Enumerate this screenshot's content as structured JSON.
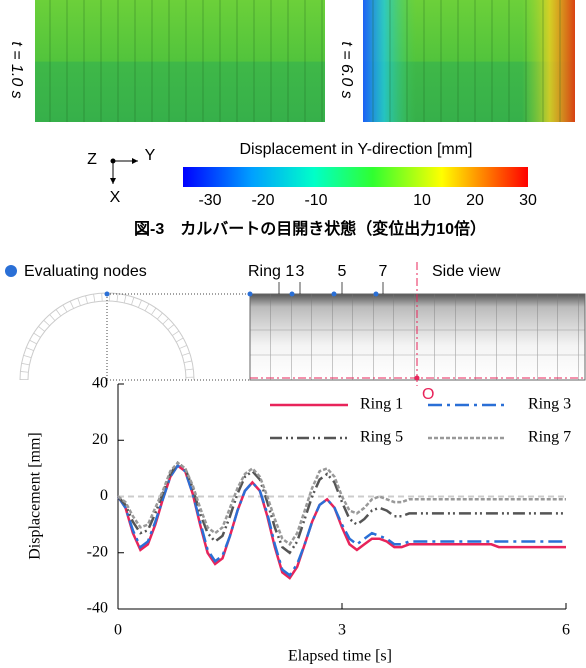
{
  "top_panels": [
    {
      "label": "t = 1.0 s"
    },
    {
      "label": "t = 6.0 s"
    }
  ],
  "axes_icon": {
    "z": "Z",
    "y": "Y",
    "x": "X"
  },
  "colorbar": {
    "title": "Displacement in Y-direction [mm]",
    "lim": [
      -30,
      30
    ],
    "ticks": [
      -30,
      -20,
      -10,
      10,
      20,
      30
    ]
  },
  "caption": "図-3　カルバートの目開き状態（変位出力10倍）",
  "schematic": {
    "legend": "Evaluating nodes",
    "ring_labels": [
      "Ring 1",
      "3",
      "5",
      "7"
    ],
    "side_view": "Side view",
    "origin": "O"
  },
  "chart_data": {
    "type": "line",
    "xlabel": "Elapsed time [s]",
    "ylabel": "Displacement [mm]",
    "x": [
      0,
      0.1,
      0.2,
      0.3,
      0.4,
      0.5,
      0.6,
      0.7,
      0.8,
      0.9,
      1,
      1.1,
      1.2,
      1.3,
      1.4,
      1.5,
      1.6,
      1.7,
      1.8,
      1.9,
      2,
      2.1,
      2.2,
      2.3,
      2.4,
      2.5,
      2.6,
      2.7,
      2.8,
      2.9,
      3,
      3.1,
      3.2,
      3.3,
      3.4,
      3.5,
      3.6,
      3.7,
      3.8,
      3.9,
      4,
      4.1,
      4.2,
      4.3,
      4.4,
      4.5,
      4.6,
      4.7,
      4.8,
      4.9,
      5,
      5.1,
      5.2,
      5.3,
      5.4,
      5.5,
      5.6,
      5.7,
      5.8,
      5.9,
      6
    ],
    "xlim": [
      0,
      6
    ],
    "xticks": [
      0,
      3,
      6
    ],
    "ylim": [
      -40,
      40
    ],
    "yticks": [
      -40,
      -20,
      0,
      20,
      40
    ],
    "legend": "upper right",
    "series": [
      {
        "name": "Ring 1",
        "color": "#e8245a",
        "linestyle": "solid",
        "values": [
          0,
          -4,
          -13,
          -19,
          -17,
          -10,
          -1,
          7,
          11,
          9,
          1,
          -10,
          -20,
          -24,
          -22,
          -14,
          -5,
          2,
          5,
          2,
          -7,
          -18,
          -27,
          -29,
          -25,
          -17,
          -9,
          -3,
          -1,
          -4,
          -11,
          -17,
          -19,
          -17,
          -15,
          -15,
          -16,
          -18,
          -18,
          -17,
          -17,
          -17,
          -17,
          -17,
          -17,
          -17,
          -17,
          -17,
          -17,
          -17,
          -17,
          -18,
          -18,
          -18,
          -18,
          -18,
          -18,
          -18,
          -18,
          -18,
          -18
        ]
      },
      {
        "name": "Ring 3",
        "color": "#2a6fd6",
        "linestyle": "dashdot",
        "values": [
          0,
          -4,
          -12,
          -18,
          -16,
          -9,
          -1,
          7,
          11,
          9,
          1,
          -9,
          -19,
          -23,
          -21,
          -14,
          -5,
          2,
          5,
          2,
          -6,
          -17,
          -26,
          -28,
          -24,
          -17,
          -9,
          -3,
          -1,
          -4,
          -10,
          -15,
          -17,
          -15,
          -13,
          -14,
          -15,
          -17,
          -17,
          -16,
          -16,
          -16,
          -16,
          -16,
          -16,
          -16,
          -16,
          -16,
          -16,
          -16,
          -16,
          -16,
          -16,
          -16,
          -16,
          -16,
          -16,
          -16,
          -16,
          -16,
          -16
        ]
      },
      {
        "name": "Ring 5",
        "color": "#555555",
        "linestyle": "dashdotdot",
        "values": [
          0,
          -3,
          -9,
          -13,
          -12,
          -6,
          1,
          8,
          12,
          10,
          3,
          -6,
          -13,
          -16,
          -14,
          -7,
          1,
          7,
          9,
          6,
          -2,
          -11,
          -18,
          -20,
          -16,
          -8,
          0,
          6,
          8,
          5,
          -2,
          -8,
          -10,
          -8,
          -5,
          -4,
          -5,
          -7,
          -7,
          -6,
          -6,
          -6,
          -6,
          -6,
          -6,
          -6,
          -6,
          -6,
          -6,
          -6,
          -6,
          -6,
          -6,
          -6,
          -6,
          -6,
          -6,
          -6,
          -6,
          -6,
          -6
        ]
      },
      {
        "name": "Ring 7",
        "color": "#999999",
        "linestyle": "dashed",
        "values": [
          0,
          -2,
          -7,
          -11,
          -10,
          -4,
          2,
          9,
          12,
          10,
          4,
          -4,
          -11,
          -13,
          -11,
          -4,
          3,
          8,
          10,
          7,
          0,
          -8,
          -15,
          -17,
          -13,
          -5,
          3,
          9,
          10,
          7,
          0,
          -5,
          -6,
          -4,
          -1,
          0,
          -1,
          -2,
          -2,
          -1,
          -1,
          -1,
          -1,
          -1,
          -1,
          -1,
          -1,
          -1,
          -1,
          -1,
          -1,
          -1,
          -1,
          -1,
          -1,
          -1,
          -1,
          -1,
          -1,
          -1,
          -1
        ]
      }
    ]
  }
}
